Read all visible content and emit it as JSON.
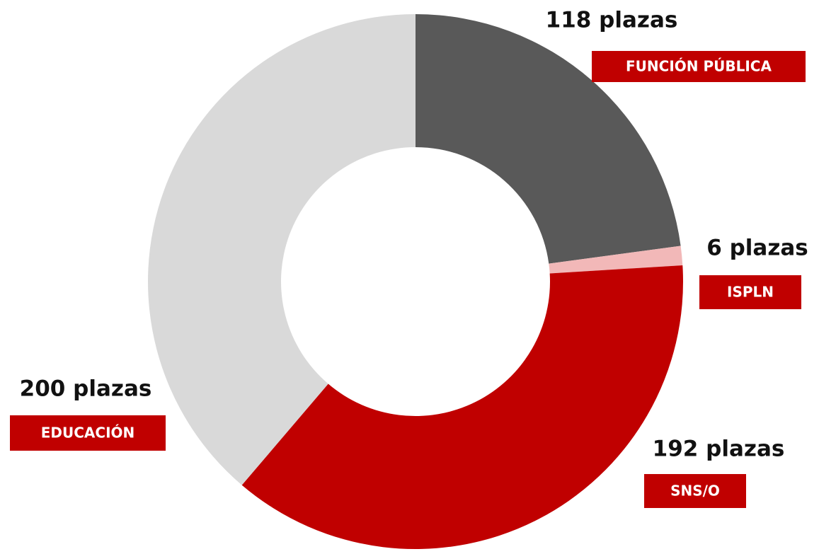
{
  "chart_data": {
    "type": "donut",
    "categories": [
      "FUNCIÓN PÚBLICA",
      "ISPLN",
      "SNS/O",
      "EDUCACIÓN"
    ],
    "values": [
      118,
      6,
      192,
      200
    ],
    "value_labels": [
      "118 plazas",
      "6 plazas",
      "192 plazas",
      "200 plazas"
    ],
    "colors": [
      "#595959",
      "#f2b8b8",
      "#c00000",
      "#d9d9d9"
    ]
  }
}
